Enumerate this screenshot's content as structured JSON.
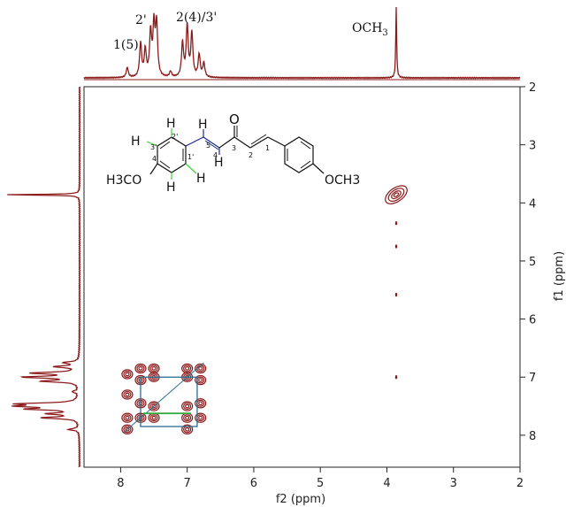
{
  "chart_data": {
    "type": "scatter",
    "title": "",
    "xlabel": "f2 (ppm)",
    "ylabel": "f1 (ppm)",
    "xlim": [
      8.55,
      2.0
    ],
    "ylim": [
      8.55,
      2.0
    ],
    "x_ticks": [
      "8",
      "7",
      "6",
      "5",
      "4",
      "3",
      "2"
    ],
    "y_ticks": [
      "2",
      "3",
      "4",
      "5",
      "6",
      "7",
      "8"
    ],
    "peak_labels": {
      "h15": "1(5)",
      "h2p": "2'",
      "h243p": "2(4)/3'",
      "och3_main": "OCH",
      "och3_sub": "3"
    },
    "projection_1d": [
      {
        "ppm": 7.9,
        "intensity": 0.14
      },
      {
        "ppm": 7.7,
        "intensity": 0.48
      },
      {
        "ppm": 7.63,
        "intensity": 0.38
      },
      {
        "ppm": 7.55,
        "intensity": 0.62
      },
      {
        "ppm": 7.5,
        "intensity": 0.7
      },
      {
        "ppm": 7.46,
        "intensity": 0.74
      },
      {
        "ppm": 7.25,
        "intensity": 0.08
      },
      {
        "ppm": 7.07,
        "intensity": 0.48
      },
      {
        "ppm": 7.0,
        "intensity": 0.72
      },
      {
        "ppm": 6.93,
        "intensity": 0.62
      },
      {
        "ppm": 6.82,
        "intensity": 0.32
      },
      {
        "ppm": 6.75,
        "intensity": 0.2
      },
      {
        "ppm": 3.86,
        "intensity": 1.0
      }
    ],
    "cross_peaks": [
      {
        "f2": 3.86,
        "f1": 3.86
      },
      {
        "f2": 7.9,
        "f1": 6.95
      },
      {
        "f2": 7.9,
        "f1": 7.3
      },
      {
        "f2": 7.9,
        "f1": 7.7
      },
      {
        "f2": 7.9,
        "f1": 7.9
      },
      {
        "f2": 7.7,
        "f1": 6.85
      },
      {
        "f2": 7.7,
        "f1": 7.05
      },
      {
        "f2": 7.7,
        "f1": 7.45
      },
      {
        "f2": 7.7,
        "f1": 7.7
      },
      {
        "f2": 7.5,
        "f1": 6.85
      },
      {
        "f2": 7.5,
        "f1": 7.0
      },
      {
        "f2": 7.5,
        "f1": 7.5
      },
      {
        "f2": 7.5,
        "f1": 7.7
      },
      {
        "f2": 7.0,
        "f1": 6.85
      },
      {
        "f2": 7.0,
        "f1": 7.0
      },
      {
        "f2": 7.0,
        "f1": 7.5
      },
      {
        "f2": 7.0,
        "f1": 7.7
      },
      {
        "f2": 7.0,
        "f1": 7.9
      },
      {
        "f2": 6.8,
        "f1": 6.85
      },
      {
        "f2": 6.8,
        "f1": 7.05
      },
      {
        "f2": 6.8,
        "f1": 7.45
      },
      {
        "f2": 6.8,
        "f1": 7.7
      }
    ],
    "noise_points": [
      {
        "f2": 3.86,
        "f1": 4.35
      },
      {
        "f2": 3.86,
        "f1": 4.75
      },
      {
        "f2": 3.86,
        "f1": 5.58
      },
      {
        "f2": 3.86,
        "f1": 7.0
      }
    ],
    "assignment_boxes": [
      {
        "f2_from": 7.7,
        "f2_to": 6.85,
        "f1_from": 7.0,
        "f1_to": 7.85,
        "color": "#2a6f8f"
      },
      {
        "f2_from": 7.65,
        "f2_to": 6.95,
        "f1_from": 7.62,
        "f1_to": 7.62,
        "color": "#2eaa3a"
      }
    ],
    "colors": {
      "spectrum": "#8b1a1a",
      "aromatic_h": "#3cd23c",
      "vinyl_h": "#1e2a8e",
      "box": "#2a6f8f"
    }
  },
  "structure": {
    "labels": {
      "H_green": "H",
      "H_blue": "H",
      "O": "O",
      "left_group": "H3CO",
      "right_group": "OCH3",
      "n1p": "1'",
      "n2p": "2'",
      "n3p": "3'",
      "n4p": "4'",
      "n1": "1",
      "n2": "2",
      "n3": "3",
      "n4": "4",
      "n5": "5"
    }
  }
}
